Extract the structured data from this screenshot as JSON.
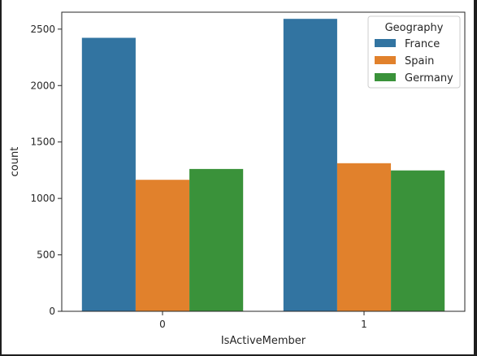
{
  "chart_data": {
    "type": "bar",
    "title": "",
    "xlabel": "IsActiveMember",
    "ylabel": "count",
    "categories": [
      "0",
      "1"
    ],
    "ylim": [
      0,
      2650
    ],
    "yticks": [
      0,
      500,
      1000,
      1500,
      2000,
      2500
    ],
    "grid": false,
    "legend": {
      "title": "Geography",
      "placement": "top-right"
    },
    "series": [
      {
        "name": "France",
        "color": "#3274a1",
        "values": [
          2423,
          2591
        ]
      },
      {
        "name": "Spain",
        "color": "#e1812c",
        "values": [
          1165,
          1312
        ]
      },
      {
        "name": "Germany",
        "color": "#3a923a",
        "values": [
          1261,
          1248
        ]
      }
    ]
  }
}
